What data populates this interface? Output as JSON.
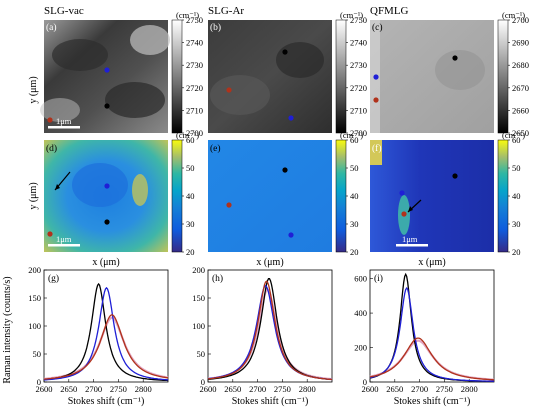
{
  "samples": [
    "SLG-vac",
    "SLG-Ar",
    "QFMLG"
  ],
  "map_panels": [
    {
      "letter": "(a)",
      "colorbar": {
        "unit": "(cm⁻¹)",
        "ticks": [
          "2750",
          "2740",
          "2730",
          "2720",
          "2710",
          "2700"
        ],
        "min": 2700,
        "max": 2750,
        "scheme": "gray"
      },
      "dots": [
        "blue",
        "black",
        "brown"
      ]
    },
    {
      "letter": "(b)",
      "colorbar": {
        "unit": "(cm⁻¹)",
        "ticks": [
          "2750",
          "2740",
          "2730",
          "2720",
          "2710",
          "2700"
        ],
        "min": 2700,
        "max": 2750,
        "scheme": "gray"
      },
      "dots": [
        "black",
        "brown",
        "blue"
      ]
    },
    {
      "letter": "(c)",
      "colorbar": {
        "unit": "(cm⁻¹)",
        "ticks": [
          "2700",
          "2690",
          "2680",
          "2670",
          "2660",
          "2650"
        ],
        "min": 2650,
        "max": 2700,
        "scheme": "gray"
      },
      "dots": [
        "black",
        "blue",
        "brown"
      ]
    },
    {
      "letter": "(d)",
      "colorbar": {
        "unit": "(cm⁻¹)",
        "ticks": [
          "60",
          "50",
          "40",
          "30",
          "20"
        ],
        "min": 20,
        "max": 60,
        "scheme": "parula"
      },
      "dots": [
        "blue",
        "black",
        "brown"
      ]
    },
    {
      "letter": "(e)",
      "colorbar": {
        "unit": "(cm⁻¹)",
        "ticks": [
          "60",
          "50",
          "40",
          "30",
          "20"
        ],
        "min": 20,
        "max": 60,
        "scheme": "parula"
      },
      "dots": [
        "black",
        "brown",
        "blue"
      ]
    },
    {
      "letter": "(f)",
      "colorbar": {
        "unit": "(cm⁻¹)",
        "ticks": [
          "60",
          "50",
          "40",
          "30",
          "20"
        ],
        "min": 20,
        "max": 60,
        "scheme": "parula"
      },
      "dots": [
        "black",
        "blue",
        "brown"
      ]
    }
  ],
  "scale_bar_label": "1μm",
  "map_xlabel": "x (μm)",
  "map_ylabel": "y (μm)",
  "colors": {
    "blue": "#1f1fd6",
    "black": "#000000",
    "brown": "#b0321b",
    "pink": "#e2a6c2"
  },
  "chart_data": [
    {
      "type": "line",
      "panel": "(g)",
      "xlabel": "Stokes shift (cm⁻¹)",
      "ylabel": "Raman intensity (counts/s)",
      "xlim": [
        2600,
        2850
      ],
      "ylim": [
        0,
        200
      ],
      "xticks": [
        2600,
        2650,
        2700,
        2750,
        2800
      ],
      "yticks": [
        0,
        50,
        100,
        150,
        200
      ],
      "series": [
        {
          "color": "black",
          "center": 2710,
          "fwhm": 35,
          "amp": 175
        },
        {
          "color": "blue",
          "center": 2726,
          "fwhm": 38,
          "amp": 168
        },
        {
          "color": "brown",
          "center": 2737,
          "fwhm": 58,
          "amp": 120
        },
        {
          "color": "pink",
          "center": 2737,
          "fwhm": 62,
          "amp": 115
        }
      ]
    },
    {
      "type": "line",
      "panel": "(h)",
      "xlabel": "Stokes shift (cm⁻¹)",
      "ylabel": "",
      "xlim": [
        2600,
        2850
      ],
      "ylim": [
        0,
        200
      ],
      "xticks": [
        2600,
        2650,
        2700,
        2750,
        2800
      ],
      "yticks": [
        0,
        50,
        100,
        150,
        200
      ],
      "series": [
        {
          "color": "black",
          "center": 2723,
          "fwhm": 40,
          "amp": 185
        },
        {
          "color": "blue",
          "center": 2716,
          "fwhm": 44,
          "amp": 172
        },
        {
          "color": "brown",
          "center": 2718,
          "fwhm": 42,
          "amp": 180
        },
        {
          "color": "pink",
          "center": 2720,
          "fwhm": 46,
          "amp": 165
        }
      ]
    },
    {
      "type": "line",
      "panel": "(i)",
      "xlabel": "Stokes shift (cm⁻¹)",
      "ylabel": "",
      "xlim": [
        2600,
        2850
      ],
      "ylim": [
        0,
        650
      ],
      "xticks": [
        2600,
        2650,
        2700,
        2750,
        2800
      ],
      "yticks": [
        0,
        200,
        400,
        600
      ],
      "series": [
        {
          "color": "black",
          "center": 2672,
          "fwhm": 28,
          "amp": 625
        },
        {
          "color": "blue",
          "center": 2674,
          "fwhm": 32,
          "amp": 545
        },
        {
          "color": "brown",
          "center": 2697,
          "fwhm": 70,
          "amp": 255
        },
        {
          "color": "pink",
          "center": 2697,
          "fwhm": 75,
          "amp": 240
        }
      ]
    }
  ]
}
